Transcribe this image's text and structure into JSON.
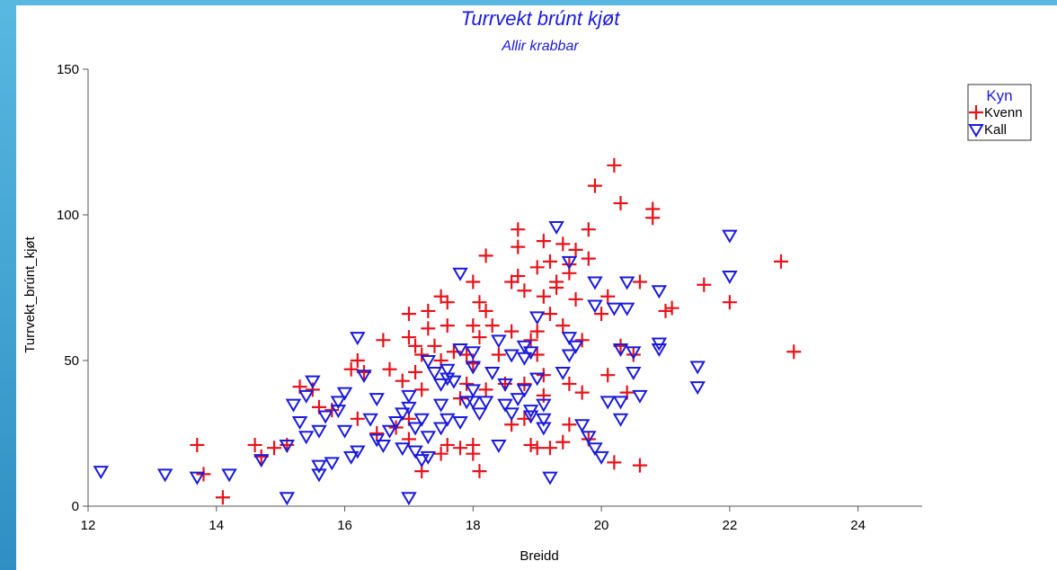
{
  "chart_data": {
    "type": "scatter",
    "title": "Turrvekt brúnt kjøt",
    "subtitle": "Allir krabbar",
    "xlabel": "Breidd",
    "ylabel": "Turrvekt_brúnt_kjøt",
    "xlim": [
      12,
      25
    ],
    "ylim": [
      0,
      150
    ],
    "xticks": [
      "12",
      "14",
      "16",
      "18",
      "20",
      "22",
      "24"
    ],
    "yticks": [
      "0",
      "50",
      "100",
      "150"
    ],
    "grid": false,
    "legend": {
      "title": "Kyn",
      "position": "top-right"
    },
    "series": [
      {
        "name": "Kvenn",
        "marker": "plus",
        "color": "#e8121a",
        "points": [
          [
            13.7,
            21
          ],
          [
            13.8,
            11
          ],
          [
            14.1,
            3
          ],
          [
            14.6,
            21
          ],
          [
            14.7,
            17
          ],
          [
            14.9,
            20
          ],
          [
            15.1,
            21
          ],
          [
            15.3,
            41
          ],
          [
            15.5,
            40
          ],
          [
            15.6,
            34
          ],
          [
            15.8,
            33
          ],
          [
            16.1,
            47
          ],
          [
            16.2,
            50
          ],
          [
            16.2,
            30
          ],
          [
            16.3,
            46
          ],
          [
            16.5,
            25
          ],
          [
            16.6,
            57
          ],
          [
            16.7,
            47
          ],
          [
            16.8,
            27
          ],
          [
            16.9,
            43
          ],
          [
            17.0,
            66
          ],
          [
            17.0,
            58
          ],
          [
            17.0,
            30
          ],
          [
            17.0,
            23
          ],
          [
            17.1,
            55
          ],
          [
            17.1,
            46
          ],
          [
            17.2,
            52
          ],
          [
            17.2,
            12
          ],
          [
            17.2,
            40
          ],
          [
            17.3,
            67
          ],
          [
            17.3,
            61
          ],
          [
            17.4,
            55
          ],
          [
            17.5,
            72
          ],
          [
            17.5,
            50
          ],
          [
            17.5,
            18
          ],
          [
            17.6,
            70
          ],
          [
            17.6,
            62
          ],
          [
            17.6,
            21
          ],
          [
            17.7,
            53
          ],
          [
            17.8,
            37
          ],
          [
            17.8,
            20
          ],
          [
            17.9,
            52
          ],
          [
            17.9,
            42
          ],
          [
            18.0,
            77
          ],
          [
            18.0,
            62
          ],
          [
            18.0,
            49
          ],
          [
            18.0,
            21
          ],
          [
            18.0,
            18
          ],
          [
            18.1,
            70
          ],
          [
            18.1,
            58
          ],
          [
            18.1,
            12
          ],
          [
            18.2,
            67
          ],
          [
            18.2,
            40
          ],
          [
            18.2,
            86
          ],
          [
            18.3,
            62
          ],
          [
            18.4,
            52
          ],
          [
            18.5,
            42
          ],
          [
            18.6,
            60
          ],
          [
            18.6,
            77
          ],
          [
            18.6,
            28
          ],
          [
            18.7,
            95
          ],
          [
            18.7,
            89
          ],
          [
            18.7,
            79
          ],
          [
            18.8,
            74
          ],
          [
            18.8,
            42
          ],
          [
            18.8,
            30
          ],
          [
            18.9,
            57
          ],
          [
            18.9,
            21
          ],
          [
            19.0,
            82
          ],
          [
            19.0,
            60
          ],
          [
            19.0,
            52
          ],
          [
            19.0,
            20
          ],
          [
            19.1,
            91
          ],
          [
            19.1,
            72
          ],
          [
            19.1,
            45
          ],
          [
            19.1,
            38
          ],
          [
            19.2,
            84
          ],
          [
            19.2,
            66
          ],
          [
            19.2,
            20
          ],
          [
            19.3,
            77
          ],
          [
            19.3,
            75
          ],
          [
            19.4,
            90
          ],
          [
            19.4,
            62
          ],
          [
            19.4,
            22
          ],
          [
            19.5,
            83
          ],
          [
            19.5,
            80
          ],
          [
            19.5,
            42
          ],
          [
            19.5,
            28
          ],
          [
            19.6,
            88
          ],
          [
            19.6,
            71
          ],
          [
            19.7,
            57
          ],
          [
            19.7,
            39
          ],
          [
            19.8,
            95
          ],
          [
            19.8,
            85
          ],
          [
            19.8,
            23
          ],
          [
            19.9,
            110
          ],
          [
            20.0,
            66
          ],
          [
            20.1,
            45
          ],
          [
            20.1,
            72
          ],
          [
            20.2,
            117
          ],
          [
            20.2,
            15
          ],
          [
            20.3,
            104
          ],
          [
            20.3,
            55
          ],
          [
            20.4,
            39
          ],
          [
            20.5,
            52
          ],
          [
            20.6,
            77
          ],
          [
            20.6,
            14
          ],
          [
            20.8,
            102
          ],
          [
            20.8,
            99
          ],
          [
            21.0,
            67
          ],
          [
            21.1,
            68
          ],
          [
            21.6,
            76
          ],
          [
            22.0,
            70
          ],
          [
            22.8,
            84
          ],
          [
            23.0,
            53
          ]
        ]
      },
      {
        "name": "Kall",
        "marker": "triangle-down",
        "color": "#1a1adc",
        "points": [
          [
            12.2,
            12
          ],
          [
            13.2,
            11
          ],
          [
            13.7,
            10
          ],
          [
            14.2,
            11
          ],
          [
            14.7,
            16
          ],
          [
            15.1,
            3
          ],
          [
            15.1,
            21
          ],
          [
            15.2,
            35
          ],
          [
            15.3,
            29
          ],
          [
            15.4,
            38
          ],
          [
            15.4,
            24
          ],
          [
            15.5,
            43
          ],
          [
            15.6,
            26
          ],
          [
            15.6,
            14
          ],
          [
            15.6,
            11
          ],
          [
            15.7,
            31
          ],
          [
            15.8,
            15
          ],
          [
            15.9,
            36
          ],
          [
            15.9,
            33
          ],
          [
            16.0,
            39
          ],
          [
            16.0,
            26
          ],
          [
            16.1,
            17
          ],
          [
            16.2,
            58
          ],
          [
            16.2,
            19
          ],
          [
            16.3,
            45
          ],
          [
            16.4,
            30
          ],
          [
            16.5,
            23
          ],
          [
            16.5,
            37
          ],
          [
            16.6,
            21
          ],
          [
            16.7,
            26
          ],
          [
            16.8,
            29
          ],
          [
            16.9,
            32
          ],
          [
            16.9,
            20
          ],
          [
            17.0,
            3
          ],
          [
            17.0,
            38
          ],
          [
            17.0,
            34
          ],
          [
            17.1,
            27
          ],
          [
            17.1,
            19
          ],
          [
            17.2,
            30
          ],
          [
            17.2,
            16
          ],
          [
            17.3,
            24
          ],
          [
            17.3,
            17
          ],
          [
            17.3,
            50
          ],
          [
            17.4,
            46
          ],
          [
            17.5,
            42
          ],
          [
            17.5,
            35
          ],
          [
            17.5,
            27
          ],
          [
            17.6,
            47
          ],
          [
            17.6,
            44
          ],
          [
            17.6,
            30
          ],
          [
            17.7,
            43
          ],
          [
            17.8,
            54
          ],
          [
            17.8,
            29
          ],
          [
            17.8,
            80
          ],
          [
            17.9,
            36
          ],
          [
            18.0,
            48
          ],
          [
            18.0,
            40
          ],
          [
            18.0,
            53
          ],
          [
            18.0,
            36
          ],
          [
            18.1,
            32
          ],
          [
            18.2,
            36
          ],
          [
            18.3,
            46
          ],
          [
            18.4,
            57
          ],
          [
            18.4,
            21
          ],
          [
            18.5,
            42
          ],
          [
            18.5,
            35
          ],
          [
            18.6,
            52
          ],
          [
            18.6,
            32
          ],
          [
            18.7,
            37
          ],
          [
            18.8,
            55
          ],
          [
            18.8,
            51
          ],
          [
            18.8,
            40
          ],
          [
            18.9,
            53
          ],
          [
            18.9,
            31
          ],
          [
            18.9,
            33
          ],
          [
            19.0,
            65
          ],
          [
            19.0,
            44
          ],
          [
            19.1,
            27
          ],
          [
            19.1,
            30
          ],
          [
            19.1,
            35
          ],
          [
            19.2,
            10
          ],
          [
            19.3,
            96
          ],
          [
            19.4,
            46
          ],
          [
            19.5,
            84
          ],
          [
            19.5,
            58
          ],
          [
            19.5,
            52
          ],
          [
            19.6,
            55
          ],
          [
            19.7,
            28
          ],
          [
            19.8,
            24
          ],
          [
            19.9,
            77
          ],
          [
            19.9,
            69
          ],
          [
            19.9,
            20
          ],
          [
            20.0,
            17
          ],
          [
            20.1,
            36
          ],
          [
            20.2,
            68
          ],
          [
            20.3,
            54
          ],
          [
            20.3,
            36
          ],
          [
            20.3,
            30
          ],
          [
            20.4,
            68
          ],
          [
            20.4,
            77
          ],
          [
            20.5,
            53
          ],
          [
            20.5,
            46
          ],
          [
            20.6,
            38
          ],
          [
            20.9,
            74
          ],
          [
            20.9,
            56
          ],
          [
            20.9,
            54
          ],
          [
            21.5,
            48
          ],
          [
            21.5,
            41
          ],
          [
            22.0,
            93
          ],
          [
            22.0,
            79
          ]
        ]
      }
    ]
  }
}
